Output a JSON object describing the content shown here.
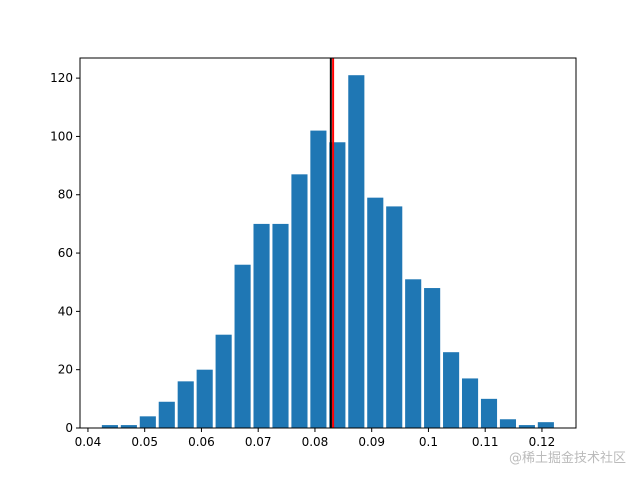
{
  "chart_data": {
    "type": "histogram",
    "bins": [
      0.0422,
      0.04554,
      0.04888,
      0.05222,
      0.05556,
      0.0589,
      0.06224,
      0.06558,
      0.06892,
      0.07226,
      0.0756,
      0.07894,
      0.08228,
      0.08562,
      0.08896,
      0.0923,
      0.09564,
      0.09898,
      0.10232,
      0.10566,
      0.109,
      0.11234,
      0.11568,
      0.11902,
      0.12236
    ],
    "values": [
      1,
      1,
      4,
      9,
      16,
      20,
      32,
      56,
      70,
      70,
      87,
      102,
      98,
      121,
      79,
      76,
      51,
      48,
      26,
      17,
      10,
      3,
      1,
      2
    ],
    "color": "#1f77b4",
    "rwidth": 0.85,
    "vlines": [
      {
        "x": 0.0828,
        "color": "#000000"
      },
      {
        "x": 0.0832,
        "color": "#ff0000"
      }
    ],
    "xlim": [
      0.0386,
      0.126
    ],
    "xticks": [
      0.04,
      0.05,
      0.06,
      0.07,
      0.08,
      0.09,
      0.1,
      0.11,
      0.12
    ],
    "ylim": [
      0,
      126.9
    ],
    "yticks": [
      0,
      20,
      40,
      60,
      80,
      100,
      120
    ],
    "watermark": "@稀土掘金技术社区"
  }
}
